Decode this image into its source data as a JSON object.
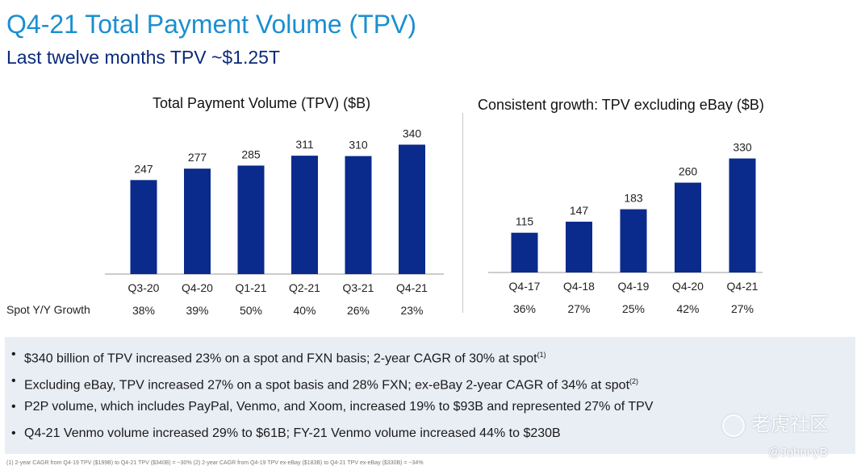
{
  "header": {
    "title": "Q4-21 Total Payment Volume (TPV)",
    "subtitle": "Last twelve months TPV ~$1.25T"
  },
  "growth_row_label": "Spot Y/Y Growth",
  "chart_data": [
    {
      "type": "bar",
      "title": "Total Payment Volume (TPV) ($B)",
      "categories": [
        "Q3-20",
        "Q4-20",
        "Q1-21",
        "Q2-21",
        "Q3-21",
        "Q4-21"
      ],
      "values": [
        247,
        277,
        285,
        311,
        310,
        340
      ],
      "growth": [
        "38%",
        "39%",
        "50%",
        "40%",
        "26%",
        "23%"
      ],
      "xlabel": "",
      "ylabel": "",
      "ylim": [
        0,
        360
      ],
      "grid": false,
      "bar_color": "#0a2a8c"
    },
    {
      "type": "bar",
      "title": "Consistent growth: TPV excluding eBay ($B)",
      "categories": [
        "Q4-17",
        "Q4-18",
        "Q4-19",
        "Q4-20",
        "Q4-21"
      ],
      "values": [
        115,
        147,
        183,
        260,
        330
      ],
      "growth": [
        "36%",
        "27%",
        "25%",
        "42%",
        "27%"
      ],
      "xlabel": "",
      "ylabel": "",
      "ylim": [
        0,
        350
      ],
      "grid": false,
      "bar_color": "#0a2a8c"
    }
  ],
  "bullets": [
    {
      "text": "$340 billion of TPV increased 23% on a spot and FXN basis; 2-year CAGR of 30% at spot",
      "sup": "(1)"
    },
    {
      "text": "Excluding eBay, TPV increased 27% on a spot basis and 28% FXN; ex-eBay 2-year CAGR of 34% at spot",
      "sup": "(2)"
    },
    {
      "text": "P2P volume, which includes PayPal, Venmo, and Xoom, increased 19% to $93B and represented 27% of TPV",
      "sup": ""
    },
    {
      "text": "Q4-21 Venmo volume increased 29% to $61B; FY-21 Venmo volume increased 44% to $230B",
      "sup": ""
    }
  ],
  "footnote": "(1) 2-year CAGR from Q4-19 TPV ($199B) to Q4-21 TPV ($340B) = ~30%   (2) 2-year CAGR from Q4-19 TPV ex-eBay ($183B) to Q4-21 TPV ex-eBay ($330B) = ~34%",
  "watermark": {
    "brand": "老虎社区",
    "user": "@JohnnyB",
    "icon": "tiger-logo-icon"
  },
  "colors": {
    "title": "#1a8fd1",
    "subtitle": "#0b2a7a",
    "bar": "#0a2a8c",
    "bullet_bg": "#e9edf4"
  }
}
